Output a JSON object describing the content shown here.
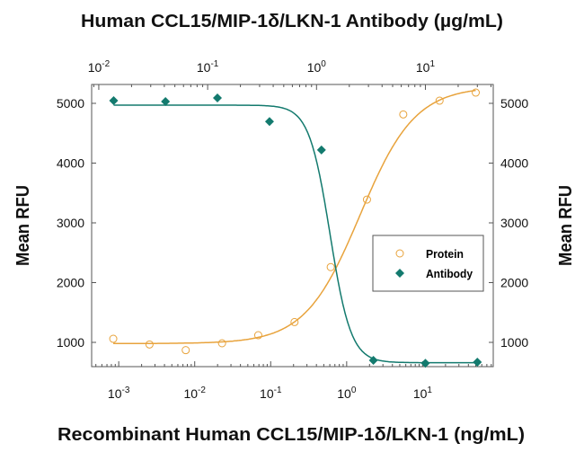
{
  "chart_data": {
    "type": "scatter",
    "title": "Human CCL15/MIP-1δ/LKN-1 Antibody (µg/mL)",
    "xlabel": "Recombinant Human CCL15/MIP-1δ/LKN-1 (ng/mL)",
    "ylabel": "Mean RFU",
    "ylabel_right": "Mean RFU",
    "x_scale": "log",
    "x_top_scale": "log",
    "xlim_bottom": [
      0.00044,
      85
    ],
    "xlim_top": [
      0.0086,
      42
    ],
    "ylim": [
      594,
      5316
    ],
    "grid": false,
    "legend_position": "center-right",
    "y_ticks": [
      1000,
      2000,
      3000,
      4000,
      5000
    ],
    "x_bottom_tick_exponents": [
      "-3",
      "-2",
      "-1",
      "0",
      "1"
    ],
    "x_top_tick_exponents": [
      "-2",
      "-1",
      "0",
      "1"
    ],
    "tick_base": "10",
    "series": [
      {
        "name": "Protein",
        "axis": "bottom",
        "marker": "open-circle",
        "color": "#E8A33C",
        "x": [
          0.000847,
          0.00254,
          0.00762,
          0.0229,
          0.0686,
          0.206,
          0.617,
          1.85,
          5.56,
          16.7,
          50
        ],
        "y": [
          1060,
          965,
          870,
          985,
          1120,
          1340,
          2260,
          3390,
          4815,
          5045,
          5180
        ],
        "fit": {
          "bottom": 980,
          "top": 5280,
          "ec50": 1.5,
          "hill": 1.2
        }
      },
      {
        "name": "Antibody",
        "axis": "top",
        "marker": "filled-diamond",
        "color": "#137A6E",
        "x": [
          0.0137,
          0.041,
          0.123,
          0.37,
          1.11,
          3.33,
          10,
          30
        ],
        "y": [
          5045,
          5030,
          5090,
          4695,
          4220,
          700,
          650,
          670
        ],
        "fit": {
          "bottom": 660,
          "top": 4970,
          "ec50": 1.33,
          "hill": -4.5
        }
      }
    ]
  }
}
